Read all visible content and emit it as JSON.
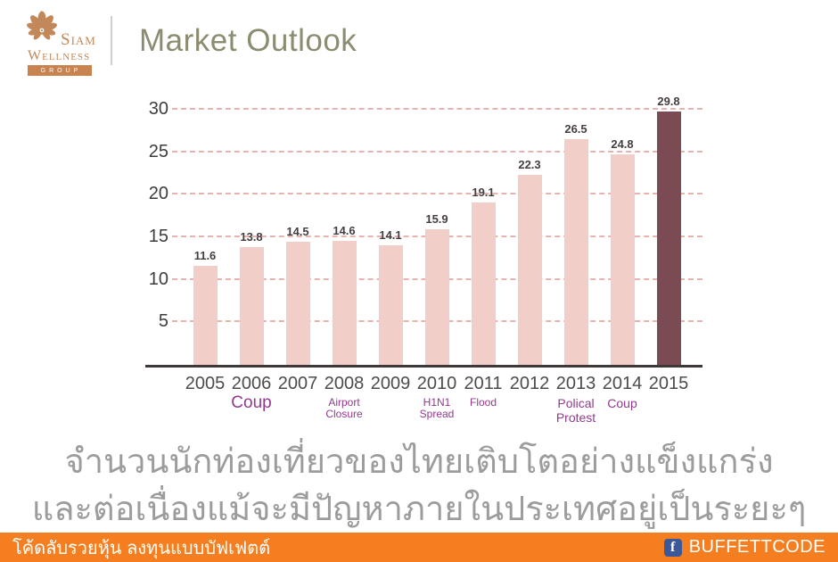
{
  "header": {
    "logo": {
      "name": "Siam Wellness Group",
      "line1": "Siam",
      "line2": "Wellness",
      "band": "GROUP",
      "brand_color": "#c2885a",
      "band_color": "#c8834f"
    },
    "title": "Market Outlook",
    "title_color": "#8c8c70"
  },
  "chart_data": {
    "type": "bar",
    "title": "",
    "xlabel": "",
    "ylabel": "",
    "categories": [
      "2005",
      "2006",
      "2007",
      "2008",
      "2009",
      "2010",
      "2011",
      "2012",
      "2013",
      "2014",
      "2015"
    ],
    "values": [
      11.6,
      13.8,
      14.5,
      14.6,
      14.1,
      15.9,
      19.1,
      22.3,
      26.5,
      24.8,
      29.8
    ],
    "ylim": [
      0,
      30
    ],
    "yticks": [
      5,
      10,
      15,
      20,
      25,
      30
    ],
    "grid": "horizontal-dashed",
    "legend": "none",
    "bar_color": "#f1cfc8",
    "highlight_index": 10,
    "highlight_color": "#7b4b54",
    "gridline_color": "#e7b3ae",
    "annotation_color": "#93398f",
    "annotations": [
      {
        "category": "2006",
        "lines": [
          "Coup"
        ],
        "size": "lg"
      },
      {
        "category": "2008",
        "lines": [
          "Airport",
          "Closure"
        ],
        "size": "sm"
      },
      {
        "category": "2010",
        "lines": [
          "H1N1",
          "Spread"
        ],
        "size": "sm"
      },
      {
        "category": "2011",
        "lines": [
          "Flood"
        ],
        "size": "sm"
      },
      {
        "category": "2013",
        "lines": [
          "Polical",
          "Protest"
        ],
        "size": "md"
      },
      {
        "category": "2014",
        "lines": [
          "Coup"
        ],
        "size": "md"
      }
    ]
  },
  "caption": {
    "line1": "จำนวนนักท่องเที่ยวของไทยเติบโตอย่างแข็งแกร่ง",
    "line2": "และต่อเนื่องแม้จะมีปัญหาภายในประเทศอยู่เป็นระยะๆ"
  },
  "footer": {
    "left_text": "โค้ดลับรวยหุ้น ลงทุนแบบบัฟเฟตต์",
    "facebook_icon": "f",
    "brand": "BUFFETTCODE",
    "background_color": "#f57f20",
    "facebook_color": "#3b5998"
  }
}
